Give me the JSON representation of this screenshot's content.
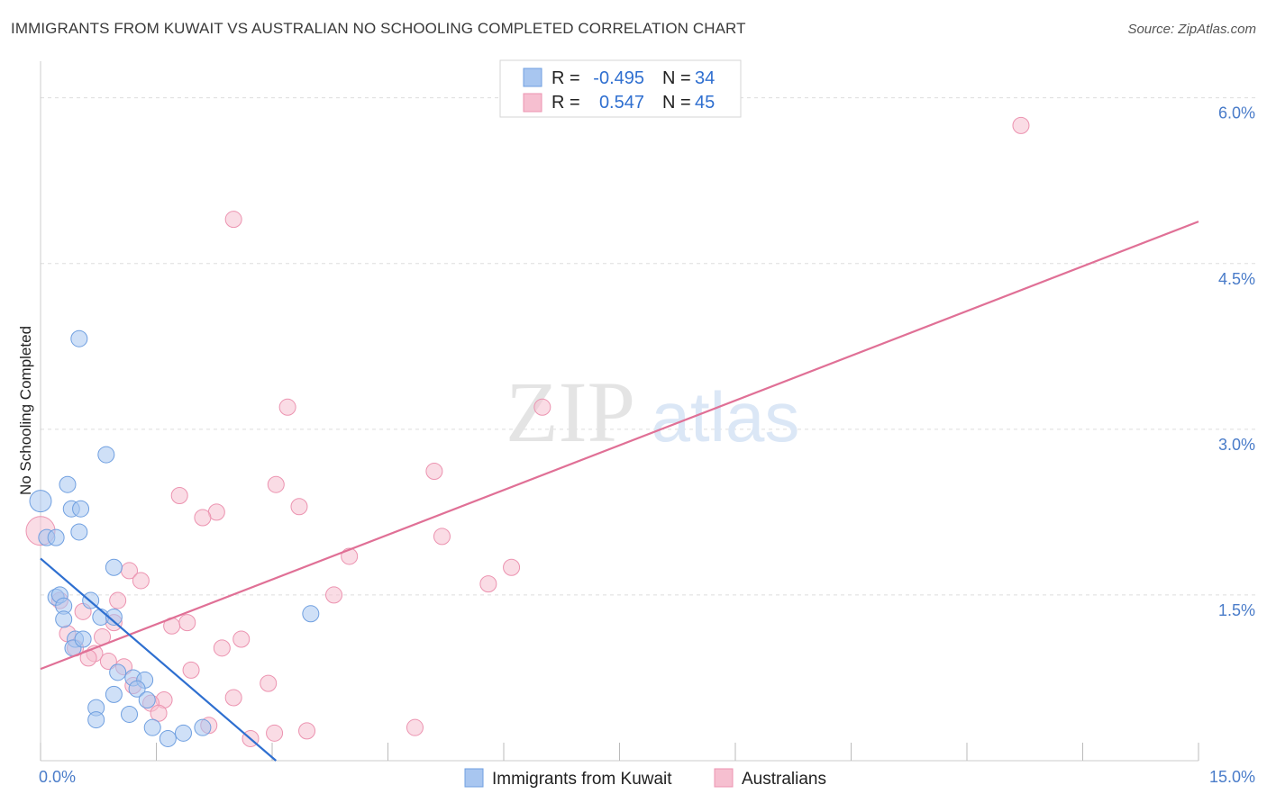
{
  "header": {
    "title": "IMMIGRANTS FROM KUWAIT VS AUSTRALIAN NO SCHOOLING COMPLETED CORRELATION CHART",
    "source": "Source: ZipAtlas.com"
  },
  "watermark": {
    "zip": "ZIP",
    "atlas": "atlas"
  },
  "legend": {
    "rows": [
      {
        "r_label": "R =",
        "r_value": "-0.495",
        "n_label": "N =",
        "n_value": "34"
      },
      {
        "r_label": "R =",
        "r_value": "0.547",
        "n_label": "N =",
        "n_value": "45"
      }
    ]
  },
  "chart_data": {
    "type": "scatter",
    "title": "IMMIGRANTS FROM KUWAIT VS AUSTRALIAN NO SCHOOLING COMPLETED CORRELATION CHART",
    "xlabel": "",
    "ylabel": "No Schooling Completed",
    "xlim": [
      0,
      15
    ],
    "ylim": [
      0,
      6.25
    ],
    "x_tick_labels": [
      "0.0%",
      "15.0%"
    ],
    "y_ticks": [
      1.5,
      3.0,
      4.5,
      6.0
    ],
    "y_tick_labels": [
      "1.5%",
      "3.0%",
      "4.5%",
      "6.0%"
    ],
    "grid": true,
    "legend_position": "top-center",
    "colors": {
      "kuwait_fill": "#a8c6f0",
      "kuwait_stroke": "#6f9fe0",
      "kuwait_line": "#2e6fd0",
      "aus_fill": "#f6bfd0",
      "aus_stroke": "#ec93b0",
      "aus_line": "#e07096"
    },
    "series": [
      {
        "name": "Immigrants from Kuwait",
        "points": [
          [
            0.0,
            2.35,
            12
          ],
          [
            0.08,
            2.02,
            9
          ],
          [
            0.2,
            2.02,
            9
          ],
          [
            0.5,
            3.82,
            9
          ],
          [
            0.4,
            2.28,
            9
          ],
          [
            0.52,
            2.28,
            9
          ],
          [
            0.35,
            2.5,
            9
          ],
          [
            0.5,
            2.07,
            9
          ],
          [
            0.85,
            2.77,
            9
          ],
          [
            0.2,
            1.48,
            9
          ],
          [
            0.25,
            1.5,
            9
          ],
          [
            0.3,
            1.4,
            9
          ],
          [
            0.3,
            1.28,
            9
          ],
          [
            0.65,
            1.45,
            9
          ],
          [
            0.95,
            1.75,
            9
          ],
          [
            0.78,
            1.3,
            9
          ],
          [
            0.95,
            1.3,
            9
          ],
          [
            0.45,
            1.1,
            9
          ],
          [
            0.42,
            1.02,
            9
          ],
          [
            0.55,
            1.1,
            9
          ],
          [
            1.0,
            0.8,
            9
          ],
          [
            1.2,
            0.75,
            9
          ],
          [
            1.35,
            0.73,
            9
          ],
          [
            0.95,
            0.6,
            9
          ],
          [
            1.25,
            0.65,
            9
          ],
          [
            1.38,
            0.55,
            9
          ],
          [
            0.72,
            0.48,
            9
          ],
          [
            0.72,
            0.37,
            9
          ],
          [
            1.15,
            0.42,
            9
          ],
          [
            1.45,
            0.3,
            9
          ],
          [
            1.65,
            0.2,
            9
          ],
          [
            1.85,
            0.25,
            9
          ],
          [
            2.1,
            0.3,
            9
          ],
          [
            3.5,
            1.33,
            9
          ]
        ],
        "trend": [
          [
            0.0,
            1.83
          ],
          [
            3.05,
            0.0
          ]
        ]
      },
      {
        "name": "Australians",
        "points": [
          [
            0.0,
            2.08,
            16
          ],
          [
            12.7,
            5.75,
            9
          ],
          [
            2.5,
            4.9,
            9
          ],
          [
            3.2,
            3.2,
            9
          ],
          [
            6.5,
            3.2,
            9
          ],
          [
            5.1,
            2.62,
            9
          ],
          [
            3.05,
            2.5,
            9
          ],
          [
            1.8,
            2.4,
            9
          ],
          [
            2.28,
            2.25,
            9
          ],
          [
            2.1,
            2.2,
            9
          ],
          [
            3.35,
            2.3,
            9
          ],
          [
            5.2,
            2.03,
            9
          ],
          [
            4.0,
            1.85,
            9
          ],
          [
            1.15,
            1.72,
            9
          ],
          [
            1.3,
            1.63,
            9
          ],
          [
            6.1,
            1.75,
            9
          ],
          [
            5.8,
            1.6,
            9
          ],
          [
            3.8,
            1.5,
            9
          ],
          [
            0.25,
            1.45,
            9
          ],
          [
            0.55,
            1.35,
            9
          ],
          [
            0.95,
            1.25,
            9
          ],
          [
            1.9,
            1.25,
            9
          ],
          [
            1.7,
            1.22,
            9
          ],
          [
            0.35,
            1.15,
            9
          ],
          [
            0.8,
            1.12,
            9
          ],
          [
            2.6,
            1.1,
            9
          ],
          [
            2.35,
            1.02,
            9
          ],
          [
            0.45,
            1.02,
            9
          ],
          [
            0.7,
            0.97,
            9
          ],
          [
            0.62,
            0.93,
            9
          ],
          [
            0.88,
            0.9,
            9
          ],
          [
            1.08,
            0.85,
            9
          ],
          [
            1.95,
            0.82,
            9
          ],
          [
            2.95,
            0.7,
            9
          ],
          [
            1.2,
            0.68,
            9
          ],
          [
            1.6,
            0.55,
            9
          ],
          [
            2.5,
            0.57,
            9
          ],
          [
            1.43,
            0.52,
            9
          ],
          [
            1.53,
            0.43,
            9
          ],
          [
            2.18,
            0.32,
            9
          ],
          [
            2.72,
            0.2,
            9
          ],
          [
            3.03,
            0.25,
            9
          ],
          [
            3.45,
            0.27,
            9
          ],
          [
            4.85,
            0.3,
            9
          ],
          [
            1.0,
            1.45,
            9
          ]
        ],
        "trend": [
          [
            0.0,
            0.83
          ],
          [
            15.0,
            4.88
          ]
        ]
      }
    ]
  }
}
